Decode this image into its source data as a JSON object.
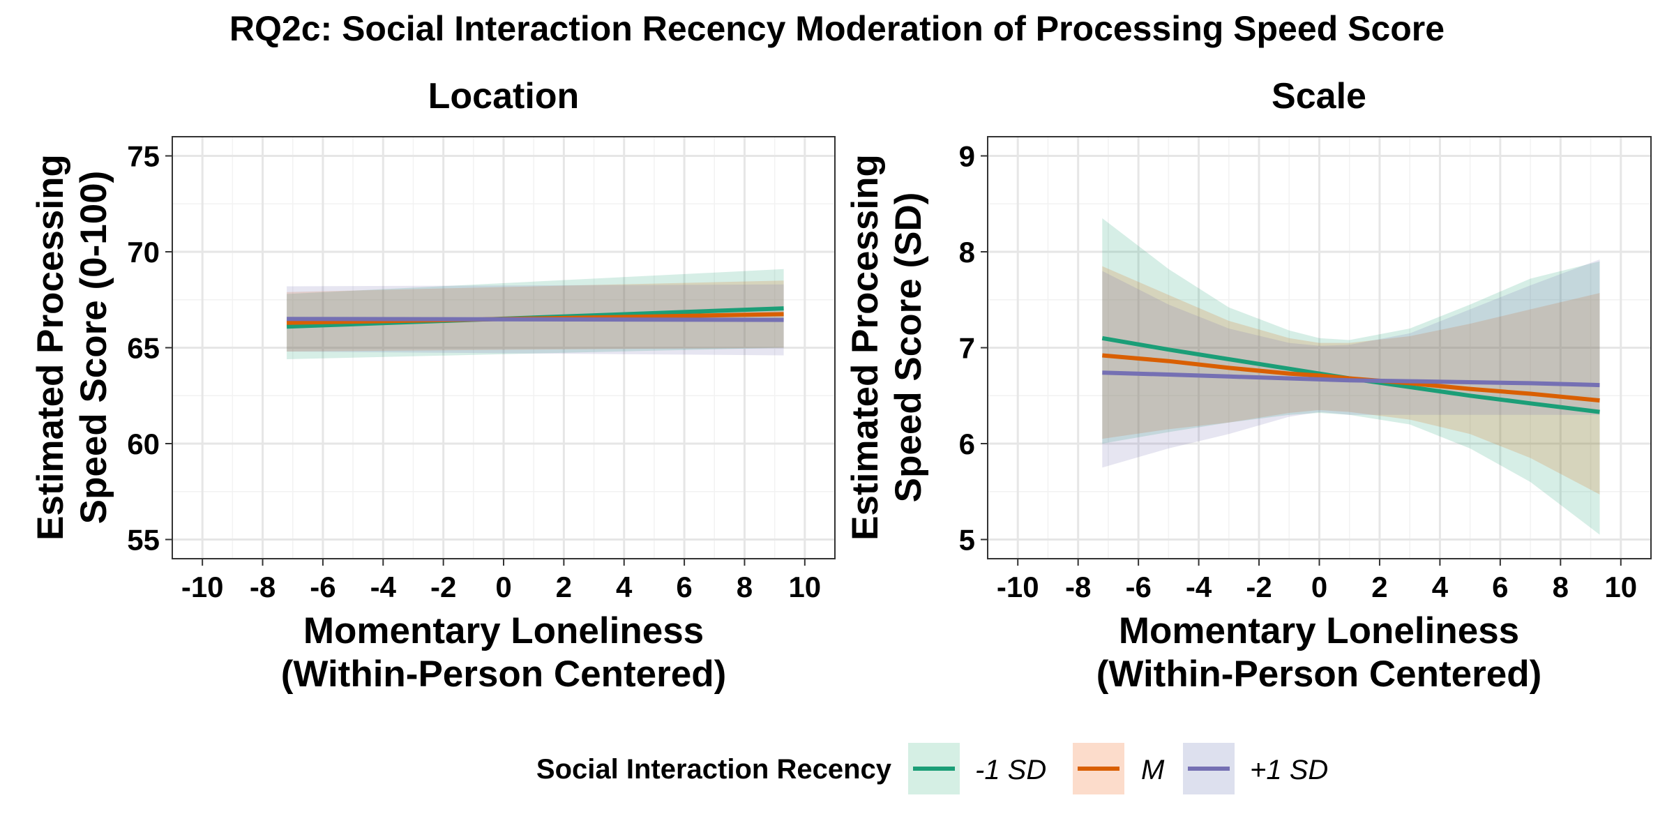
{
  "figure": {
    "title": "RQ2c: Social Interaction Recency Moderation of Processing Speed Score"
  },
  "legend": {
    "title": "Social Interaction Recency",
    "entries": [
      {
        "label": "-1 SD",
        "line_color": "#1b9e77",
        "fill_color": "#d5efe4"
      },
      {
        "label": "M",
        "line_color": "#d95f02",
        "fill_color": "#fcdccb"
      },
      {
        "label": "+1 SD",
        "line_color": "#7570b3",
        "fill_color": "#dde0ee"
      }
    ]
  },
  "chart_data": [
    {
      "type": "line",
      "title": "Location",
      "xlabel": "Momentary Loneliness\n(Within-Person Centered)",
      "ylabel": "Estimated Processing\nSpeed Score (0-100)",
      "xlim": [
        -11,
        11
      ],
      "ylim": [
        54,
        76
      ],
      "xticks": [
        -10,
        -8,
        -6,
        -4,
        -2,
        0,
        2,
        4,
        6,
        8,
        10
      ],
      "xtick_labels": [
        "-10",
        "-8",
        "-6",
        "-4",
        "-2",
        "0",
        "2",
        "4",
        "6",
        "8",
        "10"
      ],
      "yticks": [
        55,
        60,
        65,
        70,
        75
      ],
      "ytick_labels": [
        "55",
        "60",
        "65",
        "70",
        "75"
      ],
      "grid": true,
      "x": [
        -7.2,
        9.3
      ],
      "series": [
        {
          "name": "-1 SD",
          "values": [
            66.1,
            67.05
          ],
          "lower": [
            64.4,
            65.0
          ],
          "upper": [
            67.8,
            69.1
          ]
        },
        {
          "name": "M",
          "values": [
            66.3,
            66.75
          ],
          "lower": [
            64.8,
            65.0
          ],
          "upper": [
            67.9,
            68.5
          ]
        },
        {
          "name": "+1 SD",
          "values": [
            66.5,
            66.45
          ],
          "lower": [
            64.8,
            64.6
          ],
          "upper": [
            68.2,
            68.3
          ]
        }
      ]
    },
    {
      "type": "line",
      "title": "Scale",
      "xlabel": "Momentary Loneliness\n(Within-Person Centered)",
      "ylabel": "Estimated Processing\nSpeed Score (SD)",
      "xlim": [
        -11,
        11
      ],
      "ylim": [
        4.8,
        9.2
      ],
      "xticks": [
        -10,
        -8,
        -6,
        -4,
        -2,
        0,
        2,
        4,
        6,
        8,
        10
      ],
      "xtick_labels": [
        "-10",
        "-8",
        "-6",
        "-4",
        "-2",
        "0",
        "2",
        "4",
        "6",
        "8",
        "10"
      ],
      "yticks": [
        5,
        6,
        7,
        8,
        9
      ],
      "ytick_labels": [
        "5",
        "6",
        "7",
        "8",
        "9"
      ],
      "grid": true,
      "x": [
        -7.2,
        -5,
        -3,
        -1,
        0,
        1,
        3,
        5,
        7,
        9.3
      ],
      "series": [
        {
          "name": "-1 SD",
          "values": [
            7.1,
            6.98,
            6.88,
            6.78,
            6.73,
            6.68,
            6.59,
            6.5,
            6.42,
            6.33
          ],
          "lower": [
            6.0,
            6.12,
            6.22,
            6.3,
            6.32,
            6.3,
            6.2,
            5.95,
            5.6,
            5.05
          ],
          "upper": [
            8.35,
            7.82,
            7.42,
            7.18,
            7.1,
            7.08,
            7.2,
            7.45,
            7.72,
            7.9
          ]
        },
        {
          "name": "M",
          "values": [
            6.92,
            6.86,
            6.79,
            6.73,
            6.71,
            6.68,
            6.63,
            6.57,
            6.52,
            6.45
          ],
          "lower": [
            6.05,
            6.15,
            6.22,
            6.32,
            6.35,
            6.33,
            6.25,
            6.1,
            5.85,
            5.47
          ],
          "upper": [
            7.85,
            7.55,
            7.28,
            7.1,
            7.05,
            7.05,
            7.12,
            7.25,
            7.4,
            7.57
          ]
        },
        {
          "name": "+1 SD",
          "values": [
            6.74,
            6.72,
            6.7,
            6.68,
            6.67,
            6.66,
            6.65,
            6.64,
            6.63,
            6.61
          ],
          "lower": [
            5.75,
            5.95,
            6.1,
            6.28,
            6.33,
            6.3,
            6.3,
            6.3,
            6.3,
            6.3
          ],
          "upper": [
            7.8,
            7.45,
            7.2,
            7.05,
            7.02,
            7.03,
            7.15,
            7.4,
            7.65,
            7.92
          ]
        }
      ]
    }
  ]
}
